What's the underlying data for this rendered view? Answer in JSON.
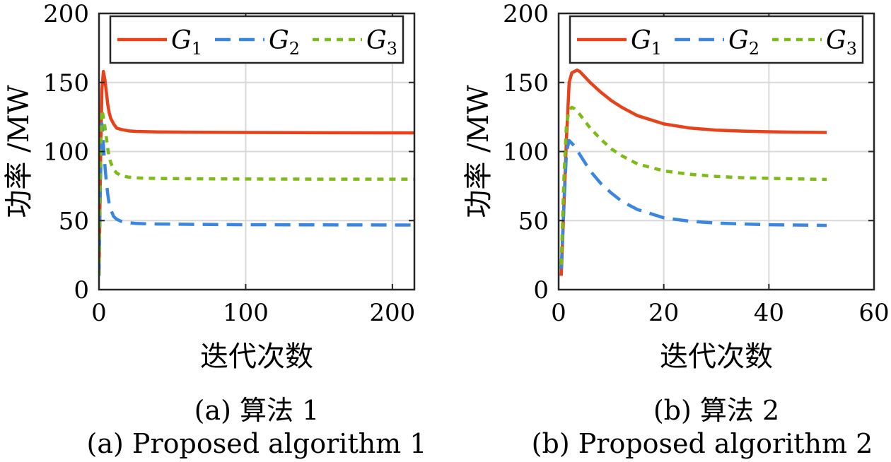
{
  "colors": {
    "G1": "#e8421a",
    "G2": "#3a86e0",
    "G3": "#7dbb18"
  },
  "legend": {
    "entries": [
      {
        "base": "G",
        "sub": "1"
      },
      {
        "base": "G",
        "sub": "2"
      },
      {
        "base": "G",
        "sub": "3"
      }
    ]
  },
  "chart_data": [
    {
      "type": "line",
      "ylabel": "功率 /MW",
      "xlabel": "迭代次数",
      "xlim": [
        0,
        215
      ],
      "ylim": [
        0,
        200
      ],
      "xticks": [
        0,
        100,
        200
      ],
      "yticks": [
        0,
        50,
        100,
        150,
        200
      ],
      "grid": true,
      "legend_position": "top, horizontal",
      "caption_cn": "(a) 算法 1",
      "caption_en": "(a) Proposed algorithm 1",
      "series": [
        {
          "name": "G1",
          "style": "solid",
          "x": [
            0,
            1,
            2,
            3,
            4,
            5,
            6,
            7,
            8,
            10,
            12,
            15,
            20,
            25,
            30,
            40,
            60,
            100,
            150,
            215
          ],
          "y": [
            10,
            90,
            145,
            158,
            152,
            143,
            134,
            128,
            124,
            120,
            117,
            116,
            115,
            114.6,
            114.4,
            114.2,
            114,
            113.8,
            113.6,
            113.5
          ]
        },
        {
          "name": "G2",
          "style": "dashed",
          "x": [
            0,
            1,
            2,
            3,
            4,
            5,
            6,
            7,
            8,
            10,
            12,
            15,
            20,
            25,
            30,
            40,
            60,
            100,
            150,
            215
          ],
          "y": [
            10,
            80,
            120,
            105,
            90,
            78,
            69,
            62,
            58,
            53,
            51,
            49.5,
            48.5,
            48,
            47.8,
            47.5,
            47.3,
            47,
            46.9,
            46.8
          ]
        },
        {
          "name": "G3",
          "style": "dotted",
          "x": [
            0,
            1,
            2,
            3,
            4,
            5,
            6,
            7,
            8,
            10,
            12,
            15,
            20,
            25,
            30,
            40,
            60,
            100,
            150,
            215
          ],
          "y": [
            10,
            100,
            130,
            125,
            118,
            110,
            102,
            96,
            92,
            87,
            84.5,
            82.5,
            81.5,
            81,
            80.7,
            80.5,
            80.3,
            80.1,
            80,
            80
          ]
        }
      ]
    },
    {
      "type": "line",
      "ylabel": "功率 /MW",
      "xlabel": "迭代次数",
      "xlim": [
        0,
        60
      ],
      "ylim": [
        0,
        200
      ],
      "xticks": [
        0,
        20,
        40,
        60
      ],
      "yticks": [
        0,
        50,
        100,
        150,
        200
      ],
      "grid": true,
      "legend_position": "top, horizontal",
      "caption_cn": "(b) 算法 2",
      "caption_en": "(b) Proposed algorithm 2",
      "series": [
        {
          "name": "G1",
          "style": "solid",
          "x": [
            0.5,
            1,
            1.5,
            2,
            2.5,
            3,
            3.5,
            4,
            5,
            6,
            8,
            10,
            12,
            15,
            20,
            25,
            30,
            35,
            40,
            45,
            51
          ],
          "y": [
            10,
            60,
            110,
            150,
            157,
            158,
            159,
            158,
            154,
            150,
            143,
            137,
            132,
            126,
            120,
            117,
            115.5,
            114.8,
            114.3,
            114,
            113.8
          ]
        },
        {
          "name": "G2",
          "style": "dashed",
          "x": [
            0.5,
            1,
            1.5,
            2,
            2.5,
            3,
            3.5,
            4,
            5,
            6,
            8,
            10,
            12,
            15,
            20,
            25,
            30,
            35,
            40,
            45,
            51
          ],
          "y": [
            15,
            60,
            100,
            108,
            106,
            104,
            101,
            98,
            92,
            86,
            77,
            70,
            64,
            58,
            52,
            49.5,
            48.2,
            47.5,
            47,
            46.8,
            46.5
          ]
        },
        {
          "name": "G3",
          "style": "dotted",
          "x": [
            0.5,
            1,
            1.5,
            2,
            2.5,
            3,
            3.5,
            4,
            5,
            6,
            8,
            10,
            12,
            15,
            20,
            25,
            30,
            35,
            40,
            45,
            51
          ],
          "y": [
            18,
            80,
            120,
            130,
            132,
            131,
            129,
            127,
            122,
            117,
            109,
            102,
            97,
            91,
            86,
            83.5,
            82,
            81,
            80.6,
            80.2,
            79.8
          ]
        }
      ]
    }
  ]
}
